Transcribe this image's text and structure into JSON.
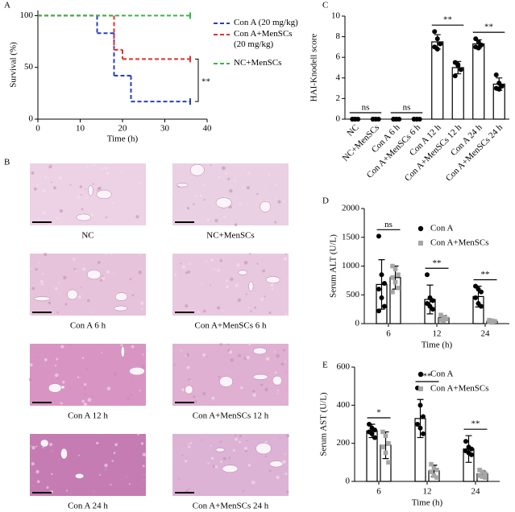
{
  "panel_labels": [
    "A",
    "B",
    "C",
    "D",
    "E"
  ],
  "histology": {
    "captions": [
      "NC",
      "NC+MenSCs",
      "Con A 6 h",
      "Con A+MenSCs 6 h",
      "Con A 12 h",
      "Con A+MenSCs 12 h",
      "Con A 24 h",
      "Con A+MenSCs 24 h"
    ]
  },
  "chart_data": [
    {
      "type": "step",
      "xlabel": "Time (h)",
      "ylabel": "Survival (%)",
      "xlim": [
        0,
        40
      ],
      "xticks": [
        0,
        10,
        20,
        30,
        40
      ],
      "ylim": [
        0,
        105
      ],
      "yticks": [
        0,
        50,
        100
      ],
      "series": [
        {
          "name": "Con A (20 mg/kg)",
          "color": "#2b3dc4",
          "x": [
            0,
            14,
            18,
            22,
            36
          ],
          "values": [
            100,
            83,
            42,
            17,
            17
          ]
        },
        {
          "name": "Con A+MenSCs (20 mg/kg)",
          "color": "#e0322a",
          "x": [
            0,
            18,
            20,
            36
          ],
          "values": [
            100,
            67,
            58,
            58
          ]
        },
        {
          "name": "NC+MenSCs",
          "color": "#3db34a",
          "x": [
            0,
            36
          ],
          "values": [
            100,
            100
          ]
        }
      ],
      "annotations": [
        "**"
      ]
    },
    {
      "type": "bar",
      "ylabel": "HAI-Knodell score",
      "categories": [
        "NC",
        "NC+MenSCs",
        "Con A 6 h",
        "Con A+MenSCs 6 h",
        "Con A 12 h",
        "Con A+MenSCs 12 h",
        "Con A 24 h",
        "Con A+MenSCs 24 h"
      ],
      "ylim": [
        0,
        10
      ],
      "yticks": [
        0,
        2,
        4,
        6,
        8,
        10
      ],
      "series": [
        {
          "color": "#000000",
          "marker": "circle",
          "values": [
            0,
            0,
            0,
            0,
            7.5,
            5.0,
            7.3,
            3.4
          ],
          "errors": [
            0,
            0,
            0,
            0,
            0.7,
            0.6,
            0.4,
            0.6
          ],
          "points": [
            [
              0,
              0,
              0,
              0,
              0
            ],
            [
              0,
              0,
              0,
              0,
              0
            ],
            [
              0,
              0,
              0,
              0,
              0
            ],
            [
              0,
              0,
              0,
              0,
              0
            ],
            [
              8.5,
              7.8,
              7.3,
              7.0,
              6.8
            ],
            [
              5.5,
              5.2,
              4.8,
              4.2,
              5.3
            ],
            [
              7.8,
              7.5,
              7.2,
              7.0,
              6.9
            ],
            [
              4.3,
              3.5,
              3.2,
              3.0,
              2.9
            ]
          ]
        }
      ],
      "annotations": [
        "ns",
        "ns",
        "**",
        "**"
      ]
    },
    {
      "type": "bar",
      "xlabel": "Time (h)",
      "ylabel": "Serum ALT (U/L)",
      "categories": [
        "6",
        "12",
        "24"
      ],
      "ylim": [
        0,
        2000
      ],
      "yticks": [
        0,
        500,
        1000,
        1500,
        2000
      ],
      "series": [
        {
          "name": "Con A",
          "color": "#000000",
          "marker": "circle",
          "values": [
            680,
            420,
            470
          ],
          "errors": [
            430,
            250,
            180
          ],
          "points": [
            [
              1520,
              850,
              700,
              600,
              450,
              300,
              220
            ],
            [
              850,
              450,
              400,
              350,
              300,
              250
            ],
            [
              650,
              600,
              550,
              450,
              350,
              300
            ]
          ]
        },
        {
          "name": "Con A+MenSCs",
          "color": "#a6a6a6",
          "marker": "square",
          "values": [
            800,
            100,
            40
          ],
          "errors": [
            200,
            40,
            20
          ],
          "points": [
            [
              1000,
              950,
              850,
              800,
              720,
              620,
              550
            ],
            [
              150,
              110,
              80,
              60,
              50
            ],
            [
              60,
              50,
              40,
              30,
              20
            ]
          ]
        }
      ],
      "annotations": [
        "ns",
        "**",
        "**"
      ]
    },
    {
      "type": "bar",
      "xlabel": "Time (h)",
      "ylabel": "Serum AST (U/L)",
      "categories": [
        "6",
        "12",
        "24"
      ],
      "ylim": [
        0,
        600
      ],
      "yticks": [
        0,
        200,
        400,
        600
      ],
      "series": [
        {
          "name": "Con A",
          "color": "#000000",
          "marker": "circle",
          "values": [
            265,
            330,
            170
          ],
          "errors": [
            35,
            100,
            70
          ],
          "points": [
            [
              300,
              280,
              270,
              260,
              250,
              230
            ],
            [
              490,
              400,
              340,
              300,
              280,
              250
            ],
            [
              210,
              180,
              170,
              160,
              150,
              140
            ]
          ]
        },
        {
          "name": "Con A+MenSCs",
          "color": "#a6a6a6",
          "marker": "square",
          "values": [
            190,
            55,
            40
          ],
          "errors": [
            70,
            30,
            15
          ],
          "points": [
            [
              260,
              240,
              200,
              180,
              150,
              100
            ],
            [
              90,
              70,
              60,
              50,
              30,
              20
            ],
            [
              60,
              50,
              40,
              30,
              25,
              20
            ]
          ]
        }
      ],
      "annotations": [
        "*",
        "**",
        "**"
      ]
    }
  ]
}
